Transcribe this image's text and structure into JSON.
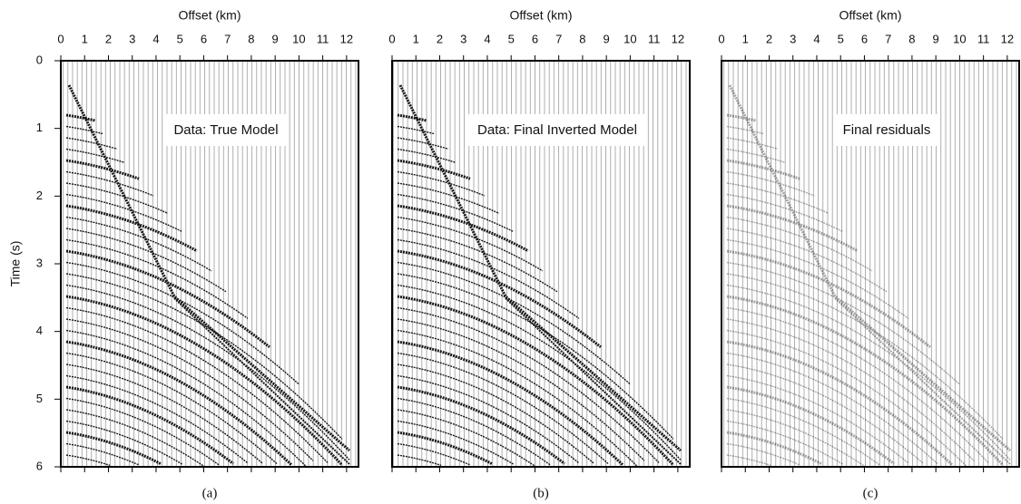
{
  "chart_data": [
    {
      "type": "seismic",
      "xlabel": "Offset (km)",
      "ylabel": "Time (s)",
      "annotation": "Data: True Model",
      "caption": "(a)",
      "xlim": [
        0,
        12.5
      ],
      "ylim": [
        6,
        0
      ],
      "xticks": [
        0,
        1,
        2,
        3,
        4,
        5,
        6,
        7,
        8,
        9,
        10,
        11,
        12
      ],
      "yticks": [
        0,
        1,
        2,
        3,
        4,
        5,
        6
      ]
    },
    {
      "type": "seismic",
      "xlabel": "Offset (km)",
      "annotation": "Data: Final Inverted Model",
      "caption": "(b)",
      "xlim": [
        0,
        12.5
      ],
      "ylim": [
        6,
        0
      ],
      "xticks": [
        0,
        1,
        2,
        3,
        4,
        5,
        6,
        7,
        8,
        9,
        10,
        11,
        12
      ]
    },
    {
      "type": "seismic",
      "xlabel": "Offset (km)",
      "annotation": "Final residuals",
      "caption": "(c)",
      "xlim": [
        0,
        12.5
      ],
      "ylim": [
        6,
        0
      ],
      "xticks": [
        0,
        1,
        2,
        3,
        4,
        5,
        6,
        7,
        8,
        9,
        10,
        11,
        12
      ]
    }
  ]
}
